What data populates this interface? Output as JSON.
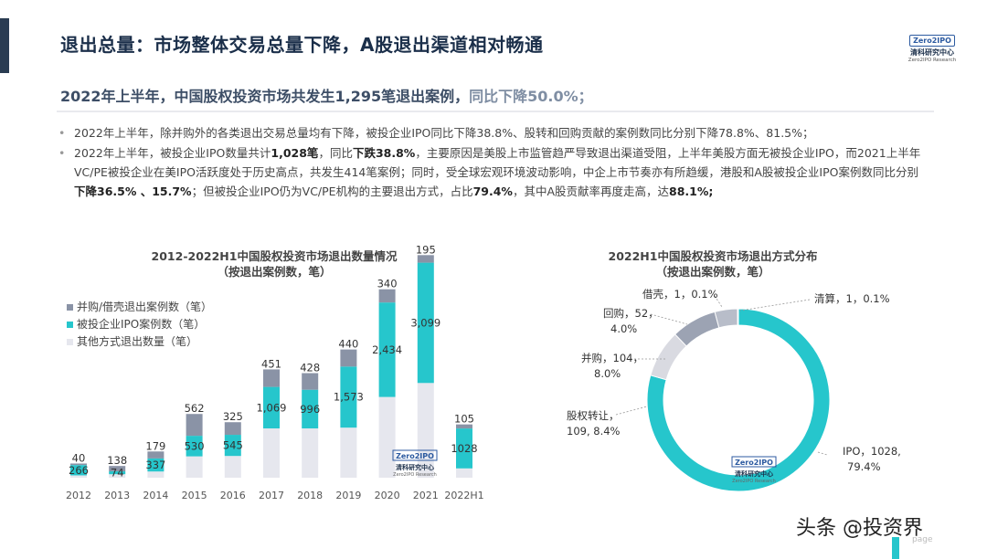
{
  "header": {
    "title": "退出总量：市场整体交易总量下降，A股退出渠道相对畅通",
    "logo": {
      "box_text": "Zero2IPO",
      "cn": "清科研究中心",
      "en": "Zero2IPO Research"
    }
  },
  "subtitle": {
    "main": "2022年上半年，中国股权投资市场共发生1,295笔退出案例，",
    "highlight": "同比下降50.0%；"
  },
  "bullets": {
    "b1": "2022年上半年，除并购外的各类退出交易总量均有下降，被投企业IPO同比下降38.8%、股转和回购贡献的案例数同比分别下降78.8%、81.5%；",
    "b2_p1": "2022年上半年，被投企业IPO数量共计",
    "b2_b1": "1,028笔",
    "b2_p2": "，同比",
    "b2_b2": "下跌38.8%",
    "b2_p3": "，主要原因是美股上市监管趋严导致退出渠道受阻，上半年美股方面无被投企业IPO，而2021上半年VC/PE被投企业在美IPO活跃度处于历史高点，共发生414笔案例；同时，受全球宏观环境波动影响，中企上市节奏亦有所趋缓，港股和A股被投企业IPO案例数同比分别",
    "b2_b3": "下降36.5% 、15.7%",
    "b2_p4": "；但被投企业IPO仍为VC/PE机构的主要退出方式，占比",
    "b2_b4": "79.4%",
    "b2_p5": "，其中A股贡献率再度走高，达",
    "b2_b5": "88.1%;"
  },
  "chart_left_title": {
    "line1": "2012-2022H1中国股权投资市场退出数量情况",
    "line2": "（按退出案例数，笔）"
  },
  "chart_right_title": {
    "line1": "2022H1中国股权投资市场退出方式分布",
    "line2": "（按退出案例数，笔）"
  },
  "colors": {
    "merger": "#8a93a6",
    "ipo": "#26c6cc",
    "other": "#e6e7ee",
    "accent": "#1b2f4a"
  },
  "chart_data": [
    {
      "type": "bar",
      "stacked": true,
      "title": "2012-2022H1中国股权投资市场退出数量情况",
      "subtitle": "（按退出案例数，笔）",
      "categories": [
        "2012",
        "2013",
        "2014",
        "2015",
        "2016",
        "2017",
        "2018",
        "2019",
        "2020",
        "2021",
        "2022H1"
      ],
      "series": [
        {
          "name": "其他方式退出数量（笔）",
          "values": [
            60,
            90,
            160,
            550,
            560,
            1270,
            1270,
            1290,
            2080,
            2440,
            240
          ],
          "color": "#e6e7ee"
        },
        {
          "name": "被投企业IPO案例数（笔）",
          "values": [
            266,
            74,
            337,
            530,
            545,
            1069,
            996,
            1573,
            2434,
            3099,
            1028
          ],
          "color": "#26c6cc"
        },
        {
          "name": "并购/借壳退出案例数（笔）",
          "values": [
            40,
            138,
            179,
            562,
            325,
            451,
            428,
            440,
            340,
            195,
            105
          ],
          "color": "#8a93a6"
        }
      ],
      "data_labels": {
        "ipo": [
          "266",
          "74",
          "337",
          "530",
          "545",
          "1,069",
          "996",
          "1,573",
          "2,434",
          "3,099",
          "1028"
        ],
        "merger": [
          "40",
          "138",
          "179",
          "562",
          "325",
          "451",
          "428",
          "440",
          "340",
          "195",
          "105"
        ]
      },
      "legend_position": "top-left",
      "grid": false
    },
    {
      "type": "pie",
      "donut": true,
      "title": "2022H1中国股权投资市场退出方式分布",
      "subtitle": "（按退出案例数，笔）",
      "slices": [
        {
          "name": "IPO",
          "value": 1028,
          "label": "IPO，1028,",
          "pct": "79.4%",
          "color": "#26c6cc"
        },
        {
          "name": "股权转让",
          "value": 109,
          "label": "股权转让，",
          "pct": "109, 8.4%",
          "color": "#d9dae1"
        },
        {
          "name": "并购",
          "value": 104,
          "label": "并购，104，",
          "pct": "8.0%",
          "color": "#9ca3b3"
        },
        {
          "name": "回购",
          "value": 52,
          "label": "回购，52，",
          "pct": "4.0%",
          "color": "#b8bdc9"
        },
        {
          "name": "借壳",
          "value": 1,
          "label": "借壳，1，0.1%",
          "pct": "",
          "color": "#6b7386"
        },
        {
          "name": "清算",
          "value": 1,
          "label": "清算，1，0.1%",
          "pct": "",
          "color": "#4a5265"
        }
      ]
    }
  ],
  "watermark": "头条 @投资界",
  "page_label": "page"
}
